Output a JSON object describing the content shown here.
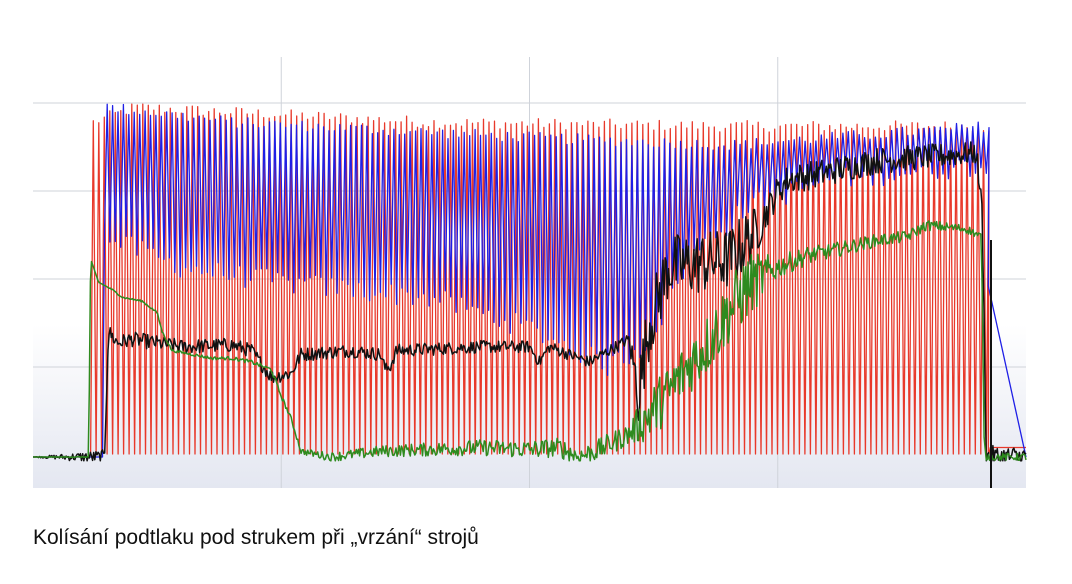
{
  "caption": "Kolísání podtlaku pod strukem při „vrzání“ strojů",
  "chart_data": {
    "type": "line",
    "title": "",
    "xlabel": "",
    "ylabel": "",
    "x_range": [
      0,
      100
    ],
    "ylim": [
      0,
      100
    ],
    "grid": true,
    "legend": "none",
    "note_values": "No axis tick labels are printed; values are given as a relative 0–100 scale (y = signal level, x = time).",
    "series": [
      {
        "color": "#e8392b",
        "kind": "oscillation",
        "x_start": 5.8,
        "x_end": 96,
        "cycles": 163,
        "low": 0.8,
        "high_profile": [
          [
            5.8,
            88
          ],
          [
            10,
            92
          ],
          [
            40,
            88
          ],
          [
            70,
            87
          ],
          [
            96,
            87
          ]
        ],
        "tail": [
          [
            0,
            0
          ],
          [
            5.6,
            0
          ],
          [
            96.2,
            0
          ],
          [
            96.4,
            2.5
          ],
          [
            100,
            2.5
          ]
        ]
      },
      {
        "color": "#1f1fe6",
        "kind": "oscillation",
        "x_start": 7.2,
        "x_end": 96,
        "cycles": 163,
        "high_profile": [
          [
            7.2,
            92
          ],
          [
            20,
            88
          ],
          [
            50,
            84
          ],
          [
            70,
            82
          ],
          [
            80,
            84
          ],
          [
            96,
            87
          ]
        ],
        "low_profile": [
          [
            7.2,
            58
          ],
          [
            15,
            50
          ],
          [
            25,
            46
          ],
          [
            40,
            42
          ],
          [
            50,
            34
          ],
          [
            58,
            24
          ],
          [
            62,
            30
          ],
          [
            66,
            52
          ],
          [
            72,
            66
          ],
          [
            80,
            73
          ],
          [
            96,
            77
          ]
        ],
        "tail": [
          [
            0,
            0
          ],
          [
            5.6,
            0
          ],
          [
            7.0,
            0
          ],
          [
            96.2,
            45
          ],
          [
            100,
            0
          ]
        ]
      },
      {
        "color": "#111111",
        "kind": "noisy",
        "points": [
          [
            0,
            0
          ],
          [
            7.2,
            0
          ],
          [
            7.6,
            33
          ],
          [
            8.5,
            30
          ],
          [
            10,
            31
          ],
          [
            15,
            29
          ],
          [
            20,
            29.5
          ],
          [
            22,
            28
          ],
          [
            24,
            21
          ],
          [
            26,
            22
          ],
          [
            27,
            27
          ],
          [
            32,
            28
          ],
          [
            35,
            27
          ],
          [
            35.5,
            23
          ],
          [
            36,
            24
          ],
          [
            36.6,
            28
          ],
          [
            45,
            29
          ],
          [
            50,
            29
          ],
          [
            51,
            25
          ],
          [
            52,
            29
          ],
          [
            55,
            26
          ],
          [
            56,
            25
          ],
          [
            58,
            28
          ],
          [
            60,
            31
          ],
          [
            61,
            17
          ],
          [
            62,
            34
          ],
          [
            64,
            50
          ],
          [
            70,
            52
          ],
          [
            73,
            60
          ],
          [
            75,
            70
          ],
          [
            76,
            73
          ],
          [
            80,
            75
          ],
          [
            85,
            78
          ],
          [
            90,
            79
          ],
          [
            95,
            80
          ],
          [
            95.6,
            64
          ],
          [
            96,
            0
          ],
          [
            100,
            0
          ]
        ],
        "noise": [
          [
            0,
            0
          ],
          [
            7.5,
            2
          ],
          [
            60,
            1.5
          ],
          [
            61,
            9
          ],
          [
            72,
            8
          ],
          [
            74,
            4
          ],
          [
            96,
            3
          ]
        ]
      },
      {
        "color": "#2e8b1f",
        "kind": "noisy",
        "points": [
          [
            0,
            0
          ],
          [
            5.6,
            0
          ],
          [
            5.8,
            52
          ],
          [
            6.6,
            46
          ],
          [
            8,
            44
          ],
          [
            9,
            42
          ],
          [
            11,
            41
          ],
          [
            12.5,
            38
          ],
          [
            13,
            33
          ],
          [
            14,
            28
          ],
          [
            16,
            27
          ],
          [
            18,
            26
          ],
          [
            20,
            26
          ],
          [
            22,
            25
          ],
          [
            24,
            23
          ],
          [
            25,
            16
          ],
          [
            26,
            10
          ],
          [
            27,
            1.5
          ],
          [
            30,
            0
          ],
          [
            35,
            1.5
          ],
          [
            40,
            2
          ],
          [
            45,
            2.5
          ],
          [
            50,
            2
          ],
          [
            53,
            2.5
          ],
          [
            55,
            0
          ],
          [
            57,
            2
          ],
          [
            60,
            6
          ],
          [
            62,
            11
          ],
          [
            64,
            17
          ],
          [
            66,
            24
          ],
          [
            68,
            30
          ],
          [
            70,
            38
          ],
          [
            72,
            45
          ],
          [
            75,
            50
          ],
          [
            78,
            53
          ],
          [
            80,
            54
          ],
          [
            85,
            57
          ],
          [
            88,
            58
          ],
          [
            90,
            61
          ],
          [
            94,
            60
          ],
          [
            95.5,
            58
          ],
          [
            95.8,
            2
          ],
          [
            96,
            0
          ],
          [
            100,
            0
          ]
        ],
        "noise": [
          [
            0,
            0
          ],
          [
            26,
            0.6
          ],
          [
            30,
            1.2
          ],
          [
            60,
            3
          ],
          [
            62,
            7
          ],
          [
            72,
            9
          ],
          [
            75,
            3
          ],
          [
            80,
            2
          ],
          [
            96,
            1
          ]
        ]
      }
    ]
  }
}
